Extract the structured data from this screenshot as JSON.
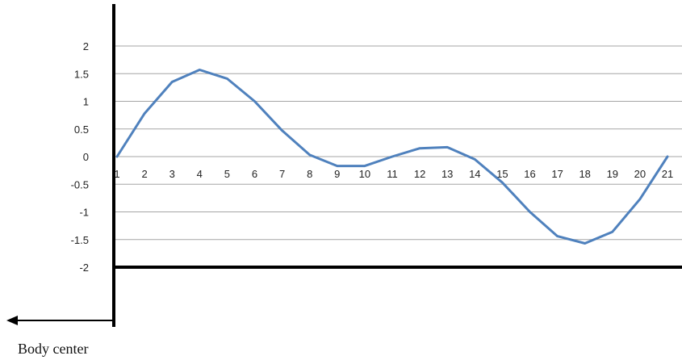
{
  "chart_data": {
    "type": "line",
    "x": [
      1,
      2,
      3,
      4,
      5,
      6,
      7,
      8,
      9,
      10,
      11,
      12,
      13,
      14,
      15,
      16,
      17,
      18,
      19,
      20,
      21
    ],
    "x_tick_labels": [
      "1",
      "2",
      "3",
      "4",
      "5",
      "6",
      "7",
      "8",
      "9",
      "10",
      "11",
      "12",
      "13",
      "14",
      "15",
      "16",
      "17",
      "18",
      "19",
      "20",
      "21"
    ],
    "series": [
      {
        "values": [
          0,
          0.78,
          1.35,
          1.57,
          1.41,
          1.0,
          0.47,
          0.03,
          -0.17,
          -0.17,
          0.0,
          0.15,
          0.17,
          -0.05,
          -0.47,
          -1.0,
          -1.44,
          -1.57,
          -1.36,
          -0.77,
          0.0
        ],
        "color": "#4f81bd"
      }
    ],
    "ylim": [
      -2,
      2
    ],
    "y_ticks": [
      2,
      1.5,
      1,
      0.5,
      0,
      -0.5,
      -1,
      -1.5,
      -2
    ],
    "y_tick_labels": [
      "2",
      "1.5",
      "1",
      "0.5",
      "0",
      "-0.5",
      "-1",
      "-1.5",
      "-2"
    ],
    "grid": true,
    "title": "",
    "xlabel": "",
    "ylabel": ""
  },
  "annotation": {
    "arrow_direction": "left",
    "label": "Body center"
  }
}
